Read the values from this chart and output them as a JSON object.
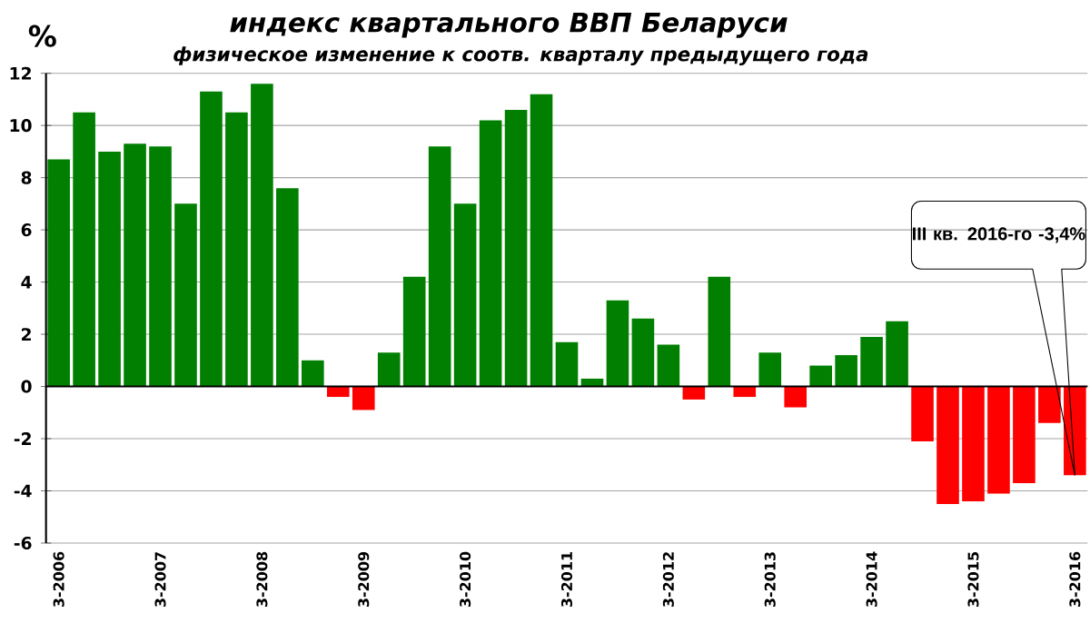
{
  "chart_data": {
    "type": "bar",
    "title": "индекс квартального ВВП Беларуси",
    "subtitle": "физическое изменение к соотв. кварталу предыдущего года",
    "categories": [
      "3-2006",
      null,
      null,
      null,
      "3-2007",
      null,
      null,
      null,
      "3-2008",
      null,
      null,
      null,
      "3-2009",
      null,
      null,
      null,
      "3-2010",
      null,
      null,
      null,
      "3-2011",
      null,
      null,
      null,
      "3-2012",
      null,
      null,
      null,
      "3-2013",
      null,
      null,
      null,
      "3-2014",
      null,
      null,
      null,
      "3-2015",
      null,
      null,
      null,
      "3-2016"
    ],
    "values": [
      8.7,
      10.5,
      9.0,
      9.3,
      9.2,
      7.0,
      11.3,
      10.5,
      11.6,
      7.6,
      1.0,
      -0.4,
      -0.9,
      1.3,
      4.2,
      9.2,
      7.0,
      10.2,
      10.6,
      11.2,
      1.7,
      0.3,
      3.3,
      2.6,
      1.6,
      -0.5,
      4.2,
      -0.4,
      1.3,
      -0.8,
      0.8,
      1.2,
      1.9,
      2.5,
      -2.1,
      -4.5,
      -4.4,
      -4.1,
      -3.7,
      -1.4,
      -3.4
    ],
    "colors": [
      "#007f00",
      "#007f00",
      "#007f00",
      "#007f00",
      "#007f00",
      "#007f00",
      "#007f00",
      "#007f00",
      "#007f00",
      "#007f00",
      "#007f00",
      "#ff0000",
      "#ff0000",
      "#007f00",
      "#007f00",
      "#007f00",
      "#007f00",
      "#007f00",
      "#007f00",
      "#007f00",
      "#007f00",
      "#007f00",
      "#007f00",
      "#007f00",
      "#007f00",
      "#ff0000",
      "#007f00",
      "#ff0000",
      "#007f00",
      "#ff0000",
      "#007f00",
      "#007f00",
      "#007f00",
      "#007f00",
      "#ff0000",
      "#ff0000",
      "#ff0000",
      "#ff0000",
      "#ff0000",
      "#ff0000",
      "#ff0000"
    ],
    "ylim": [
      -6,
      12
    ],
    "yticks": [
      -6,
      -4,
      -2,
      0,
      2,
      4,
      6,
      8,
      10,
      12
    ],
    "grid": "y",
    "annotations": [
      "%",
      "III кв. 2016-го -3,4%"
    ]
  }
}
